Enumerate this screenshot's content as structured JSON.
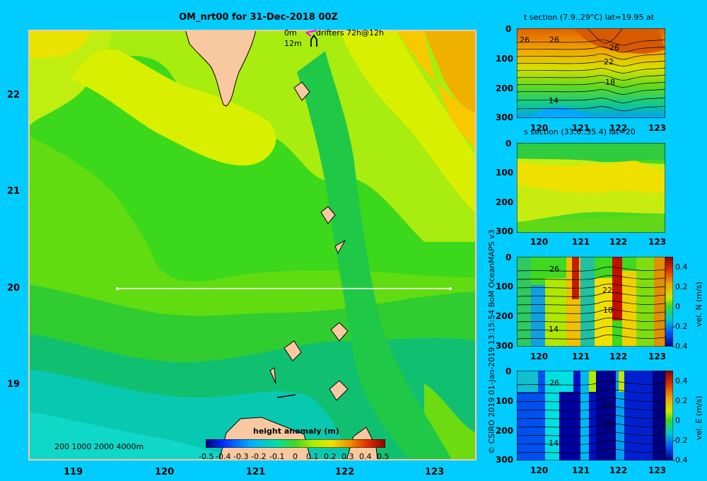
{
  "map": {
    "title": "OM_nrt00 for 31-Dec-2018 00Z",
    "legend": {
      "depth0": "0m",
      "depth1": "12m",
      "drifters": "drifters 72h@12h",
      "depth_scale": "200  1000  2000  4000m"
    },
    "lat_ticks": [
      "22",
      "21",
      "20",
      "19"
    ],
    "lon_ticks": [
      "119",
      "120",
      "121",
      "122",
      "123"
    ],
    "colorbar": {
      "label": "height anomaly (m)",
      "ticks": [
        "-0.5",
        "-0.4",
        "-0.3",
        "-0.2",
        "-0.1",
        "0",
        "0.1",
        "0.2",
        "0.3",
        "0.4",
        "0.5"
      ]
    },
    "section_line": {
      "lon": [
        119.5,
        123.2
      ],
      "lat": 20
    }
  },
  "credit": "© CSIRO 2019   01-Jan-2019 13:15:54 BoM OceanMAPS v3",
  "panels": [
    {
      "title": "t section (7.9..29°C) lat=19.95 at",
      "depth_ticks": [
        "0",
        "100",
        "200",
        "300"
      ],
      "lon_ticks": [
        "120",
        "121",
        "122",
        "123"
      ],
      "contour_labels": [
        "26",
        "26",
        "26",
        "22",
        "18",
        "14"
      ]
    },
    {
      "title": "s section (33.6..35.4) lat=20",
      "depth_ticks": [
        "0",
        "100",
        "200",
        "300"
      ],
      "lon_ticks": [
        "120",
        "121",
        "122",
        "123"
      ]
    },
    {
      "title": "",
      "depth_ticks": [
        "0",
        "100",
        "200",
        "300"
      ],
      "lon_ticks": [
        "120",
        "121",
        "122",
        "123"
      ],
      "contour_labels": [
        "26",
        "22",
        "18",
        "14"
      ],
      "colorbar_label": "vel. N (m/s)",
      "colorbar_ticks": [
        "0.4",
        "0.2",
        "0",
        "-0.2",
        "-0.4"
      ]
    },
    {
      "title": "",
      "depth_ticks": [
        "0",
        "100",
        "200",
        "300"
      ],
      "lon_ticks": [
        "120",
        "121",
        "122",
        "123"
      ],
      "contour_labels": [
        "26",
        "22",
        "18",
        "14"
      ],
      "colorbar_label": "vel. E (m/s)",
      "colorbar_ticks": [
        "0.4",
        "0.2",
        "0",
        "-0.2",
        "-0.4"
      ]
    }
  ],
  "colors": {
    "background": "#00ccff",
    "land": "#f8c8a0",
    "section_line": "#ffffff",
    "drifter": "#ff00ff"
  }
}
